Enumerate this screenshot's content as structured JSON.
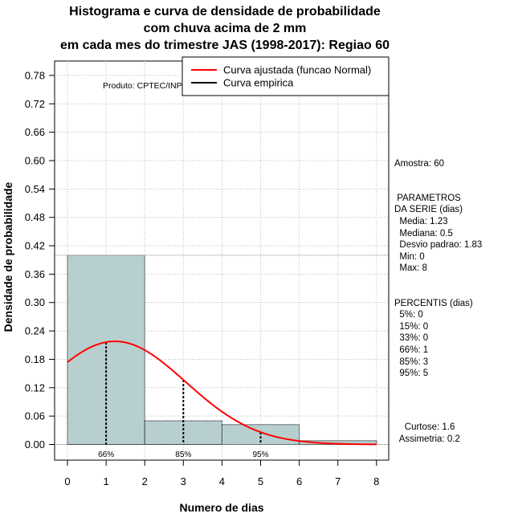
{
  "title": {
    "line1": "Histograma e curva de densidade de probabilidade",
    "line2": "com chuva acima de 2 mm",
    "line3": "em cada mes do trimestre JAS (1998-2017): Regiao 60"
  },
  "credit": "Produto: CPTEC/INPE",
  "legend": {
    "fitted": "Curva ajustada (funcao Normal)",
    "empirical": "Curva empirica"
  },
  "stats": {
    "sample": "Amostra: 60",
    "params_title_1": " PARAMETROS",
    "params_title_2": "DA SERIE (dias)",
    "mean": "  Media: 1.23",
    "median": "  Mediana: 0.5",
    "sd": "  Desvio padrao: 1.83",
    "min": "  Min: 0",
    "max": "  Max: 8",
    "perc_title": "PERCENTIS (dias)",
    "p5": "  5%: 0",
    "p15": "  15%: 0",
    "p33": "  33%: 0",
    "p66": "  66%: 1",
    "p85": "  85%: 3",
    "p95": "  95%: 5",
    "kurtosis": "    Curtose: 1.6",
    "skewness": "  Assimetria: 0.2"
  },
  "colors": {
    "bar_fill": "#b7cfcf",
    "fitted_curve": "#ff0000",
    "empirical_curve": "#000000",
    "grid": "#bebebe"
  },
  "chart_data": {
    "type": "bar",
    "title": "Histograma e curva de densidade de probabilidade com chuva acima de 2 mm em cada mes do trimestre JAS (1998-2017): Regiao 60",
    "xlabel": "Numero de dias",
    "ylabel": "Densidade de probabilidade",
    "xlim": [
      0,
      8
    ],
    "ylim": [
      0,
      0.81
    ],
    "x_ticks": [
      0,
      1,
      2,
      3,
      4,
      5,
      6,
      7,
      8
    ],
    "y_ticks": [
      0.0,
      0.06,
      0.12,
      0.18,
      0.24,
      0.3,
      0.36,
      0.42,
      0.48,
      0.54,
      0.6,
      0.66,
      0.72,
      0.78
    ],
    "y_tick_labels": [
      "0.00",
      "0.06",
      "0.12",
      "0.18",
      "0.24",
      "0.30",
      "0.36",
      "0.42",
      "0.48",
      "0.54",
      "0.60",
      "0.66",
      "0.72",
      "0.78"
    ],
    "grid": true,
    "bins": [
      {
        "from": 0,
        "to": 2,
        "density": 0.4
      },
      {
        "from": 2,
        "to": 4,
        "density": 0.05
      },
      {
        "from": 4,
        "to": 6,
        "density": 0.042
      },
      {
        "from": 6,
        "to": 8,
        "density": 0.008
      }
    ],
    "reference_line_y": 0.4,
    "fitted_normal": {
      "mean": 1.23,
      "sd": 1.83,
      "x_range": [
        0,
        8
      ]
    },
    "percentile_markers": [
      {
        "x": 1,
        "label": "66%"
      },
      {
        "x": 3,
        "label": "85%"
      },
      {
        "x": 5,
        "label": "95%"
      }
    ],
    "legend_position": "top-right"
  }
}
